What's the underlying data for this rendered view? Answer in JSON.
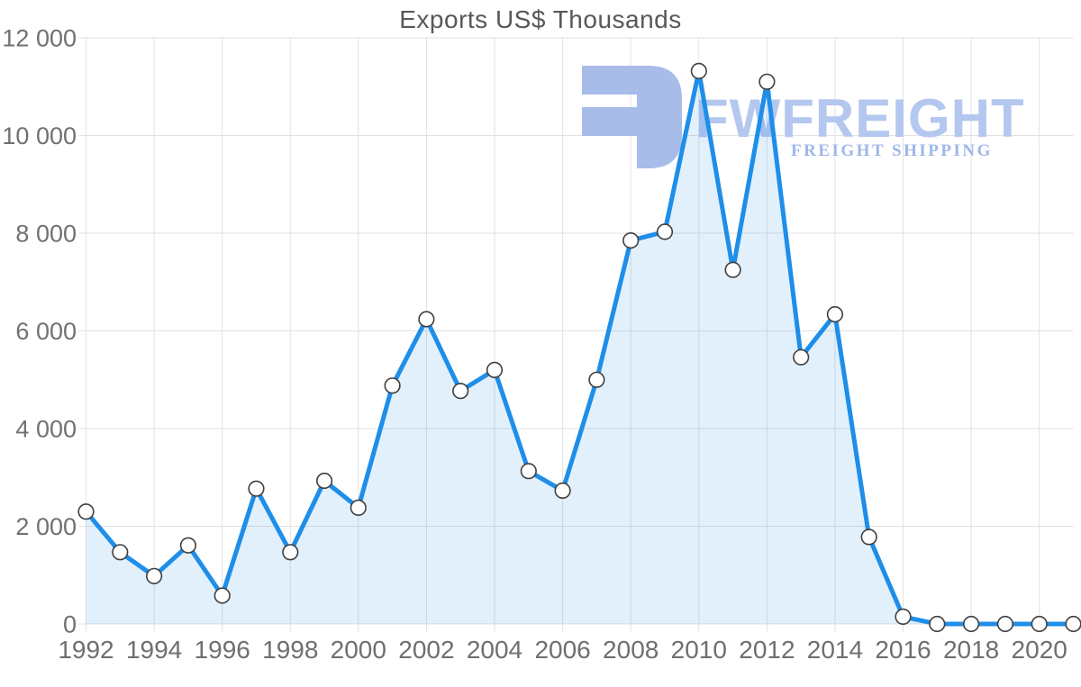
{
  "title": "Exports US$ Thousands",
  "watermark": {
    "brand": "FWFREIGHT",
    "tagline": "FREIGHT SHIPPING",
    "mark_color": "#a8bce9",
    "brand_color": "#b4c7ef",
    "tagline_color": "#9db7e9"
  },
  "colors": {
    "line": "#1e8ee9",
    "area_fill": "rgba(30,142,233,0.13)",
    "grid": "#e2e2e2",
    "axis_text": "#717171",
    "title_text": "#58585c",
    "marker_fill": "#ffffff",
    "marker_stroke": "#3f3f3f"
  },
  "chart_data": {
    "type": "area",
    "title": "Exports US$ Thousands",
    "xlabel": "",
    "ylabel": "",
    "legend": "none",
    "grid": true,
    "marker": "circle",
    "ylim": [
      0,
      12000
    ],
    "y_ticks": [
      0,
      2000,
      4000,
      6000,
      8000,
      10000,
      12000
    ],
    "y_tick_labels": [
      "0",
      "2 000",
      "4 000",
      "6 000",
      "8 000",
      "10 000",
      "12 000"
    ],
    "x_tick_years": [
      1992,
      1994,
      1996,
      1998,
      2000,
      2002,
      2004,
      2006,
      2008,
      2010,
      2012,
      2014,
      2016,
      2018,
      2020
    ],
    "x": [
      1992,
      1993,
      1994,
      1995,
      1996,
      1997,
      1998,
      1999,
      2000,
      2001,
      2002,
      2003,
      2004,
      2005,
      2006,
      2007,
      2008,
      2009,
      2010,
      2011,
      2012,
      2013,
      2014,
      2015,
      2016,
      2017,
      2018,
      2019,
      2020,
      2021
    ],
    "values": [
      2300,
      1470,
      980,
      1610,
      580,
      2770,
      1470,
      2930,
      2380,
      4880,
      6240,
      4770,
      5200,
      3130,
      2730,
      5000,
      7850,
      8030,
      11320,
      7250,
      11100,
      5460,
      6340,
      1780,
      150,
      0,
      0,
      0,
      0,
      0
    ]
  }
}
